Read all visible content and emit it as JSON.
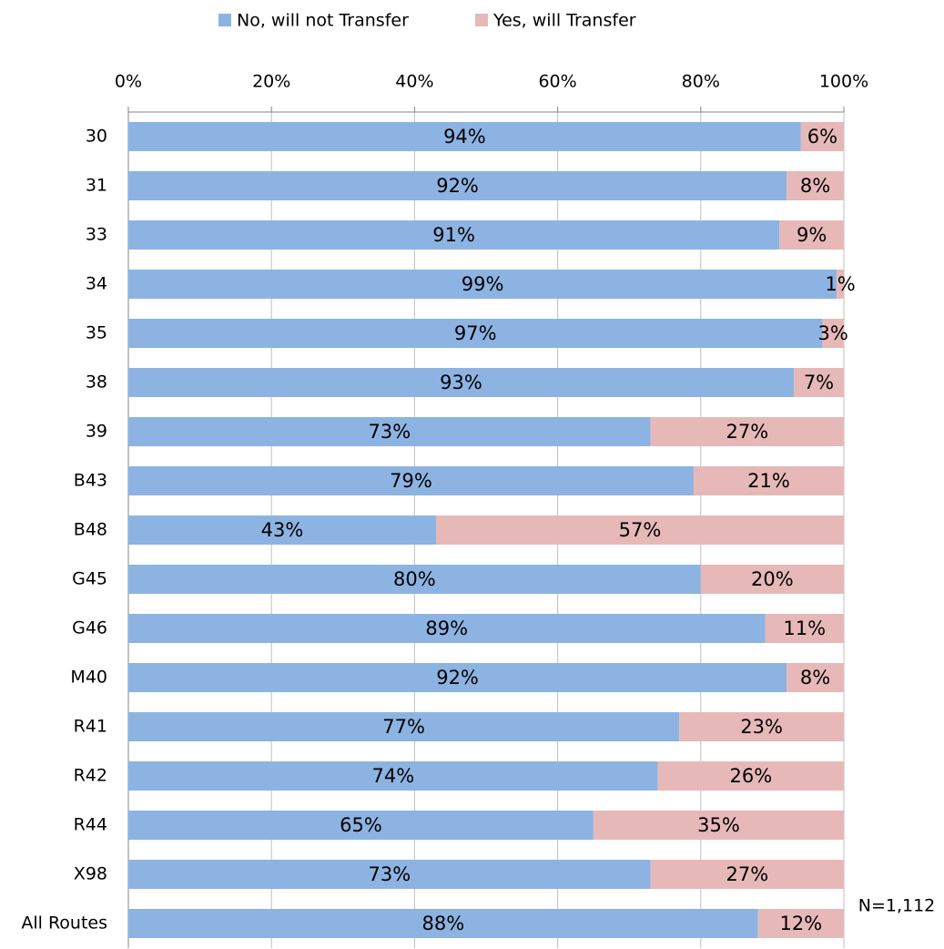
{
  "chart_data": {
    "type": "stacked_barh",
    "categories": [
      "30",
      "31",
      "33",
      "34",
      "35",
      "38",
      "39",
      "B43",
      "B48",
      "G45",
      "G46",
      "M40",
      "R41",
      "R42",
      "R44",
      "X98",
      "All Routes"
    ],
    "series": [
      {
        "name": "No, will not Transfer",
        "color": "#8db3e2",
        "values": [
          94,
          92,
          91,
          99,
          97,
          93,
          73,
          79,
          43,
          80,
          89,
          92,
          77,
          74,
          65,
          73,
          88
        ],
        "value_labels": [
          "94%",
          "92%",
          "91%",
          "99%",
          "97%",
          "93%",
          "73%",
          "79%",
          "43%",
          "80%",
          "89%",
          "92%",
          "77%",
          "74%",
          "65%",
          "73%",
          "88%"
        ]
      },
      {
        "name": "Yes, will Transfer",
        "color": "#e6b9b8",
        "values": [
          6,
          8,
          9,
          1,
          3,
          7,
          27,
          21,
          57,
          20,
          11,
          8,
          23,
          26,
          35,
          27,
          12
        ],
        "value_labels": [
          "6%",
          "8%",
          "9%",
          "1%",
          "3%",
          "7%",
          "27%",
          "21%",
          "57%",
          "20%",
          "11%",
          "8%",
          "23%",
          "26%",
          "35%",
          "27%",
          "12%"
        ]
      }
    ],
    "xlim": [
      0,
      100
    ],
    "xticks": [
      {
        "value": 0,
        "label": "0%"
      },
      {
        "value": 20,
        "label": "20%"
      },
      {
        "value": 40,
        "label": "40%"
      },
      {
        "value": 60,
        "label": "60%"
      },
      {
        "value": 80,
        "label": "80%"
      },
      {
        "value": 100,
        "label": "100%"
      }
    ],
    "grid": true,
    "legend": "top",
    "annotation": "N=1,112"
  }
}
